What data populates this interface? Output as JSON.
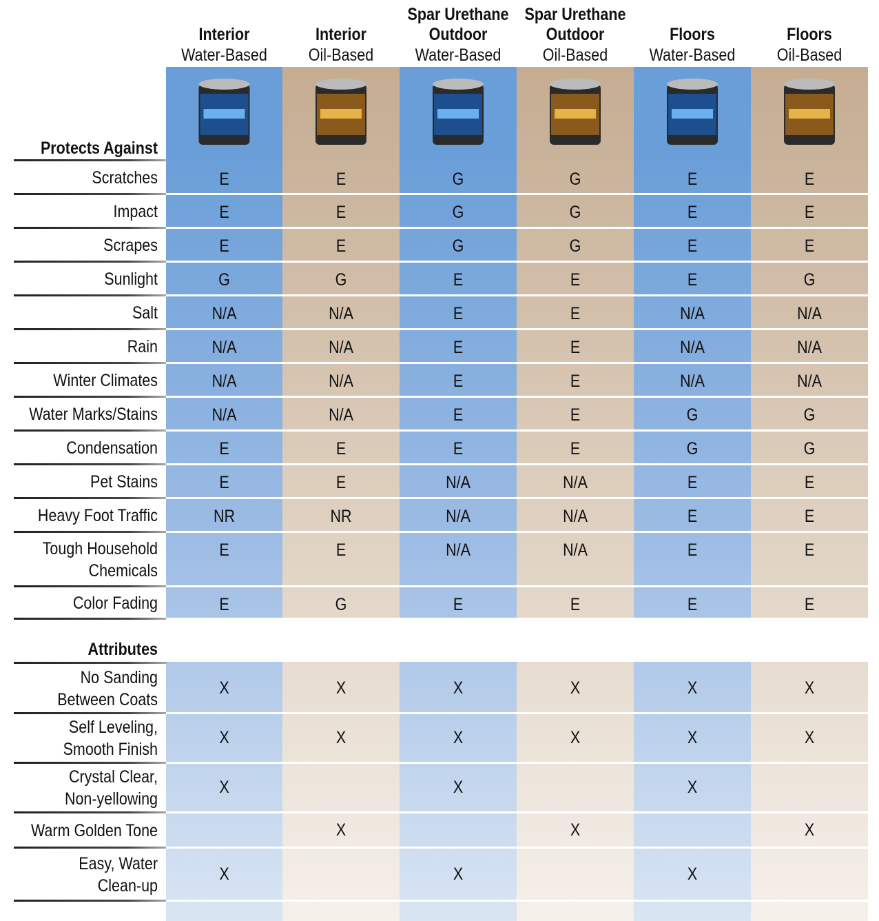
{
  "columns": [
    {
      "title": [
        "Interior"
      ],
      "subtitle": "Water-Based"
    },
    {
      "title": [
        "Interior"
      ],
      "subtitle": "Oil-Based"
    },
    {
      "title": [
        "Spar Urethane",
        "Outdoor"
      ],
      "subtitle": "Water-Based"
    },
    {
      "title": [
        "Spar Urethane",
        "Outdoor"
      ],
      "subtitle": "Oil-Based"
    },
    {
      "title": [
        "Floors"
      ],
      "subtitle": "Water-Based"
    },
    {
      "title": [
        "Floors"
      ],
      "subtitle": "Oil-Based"
    }
  ],
  "protects": {
    "heading": "Protects Against",
    "rows": [
      {
        "label": [
          "Scratches"
        ],
        "values": [
          "E",
          "E",
          "G",
          "G",
          "E",
          "E"
        ]
      },
      {
        "label": [
          "Impact"
        ],
        "values": [
          "E",
          "E",
          "G",
          "G",
          "E",
          "E"
        ]
      },
      {
        "label": [
          "Scrapes"
        ],
        "values": [
          "E",
          "E",
          "G",
          "G",
          "E",
          "E"
        ]
      },
      {
        "label": [
          "Sunlight"
        ],
        "values": [
          "G",
          "G",
          "E",
          "E",
          "E",
          "G"
        ]
      },
      {
        "label": [
          "Salt"
        ],
        "values": [
          "N/A",
          "N/A",
          "E",
          "E",
          "N/A",
          "N/A"
        ]
      },
      {
        "label": [
          "Rain"
        ],
        "values": [
          "N/A",
          "N/A",
          "E",
          "E",
          "N/A",
          "N/A"
        ]
      },
      {
        "label": [
          "Winter Climates"
        ],
        "values": [
          "N/A",
          "N/A",
          "E",
          "E",
          "N/A",
          "N/A"
        ]
      },
      {
        "label": [
          "Water Marks/Stains"
        ],
        "values": [
          "N/A",
          "N/A",
          "E",
          "E",
          "G",
          "G"
        ]
      },
      {
        "label": [
          "Condensation"
        ],
        "values": [
          "E",
          "E",
          "E",
          "E",
          "G",
          "G"
        ]
      },
      {
        "label": [
          "Pet Stains"
        ],
        "values": [
          "E",
          "E",
          "N/A",
          "N/A",
          "E",
          "E"
        ]
      },
      {
        "label": [
          "Heavy Foot Traffic"
        ],
        "values": [
          "NR",
          "NR",
          "N/A",
          "N/A",
          "E",
          "E"
        ]
      },
      {
        "label": [
          "Tough Household",
          "Chemicals"
        ],
        "values": [
          "E",
          "E",
          "N/A",
          "N/A",
          "E",
          "E"
        ]
      },
      {
        "label": [
          "Color Fading"
        ],
        "values": [
          "E",
          "G",
          "E",
          "E",
          "E",
          "E"
        ]
      }
    ]
  },
  "attributes": {
    "heading": "Attributes",
    "rows": [
      {
        "label": [
          "No Sanding",
          "Between Coats"
        ],
        "values": [
          "X",
          "X",
          "X",
          "X",
          "X",
          "X"
        ]
      },
      {
        "label": [
          "Self Leveling,",
          "Smooth Finish"
        ],
        "values": [
          "X",
          "X",
          "X",
          "X",
          "X",
          "X"
        ]
      },
      {
        "label": [
          "Crystal Clear,",
          "Non-yellowing"
        ],
        "values": [
          "X",
          null,
          "X",
          null,
          "X",
          null
        ]
      },
      {
        "label": [
          "Warm Golden Tone"
        ],
        "values": [
          null,
          "X",
          null,
          "X",
          null,
          "X"
        ]
      },
      {
        "label": [
          "Easy, Water",
          "Clean-up"
        ],
        "values": [
          "X",
          null,
          "X",
          null,
          "X",
          null
        ]
      }
    ]
  }
}
